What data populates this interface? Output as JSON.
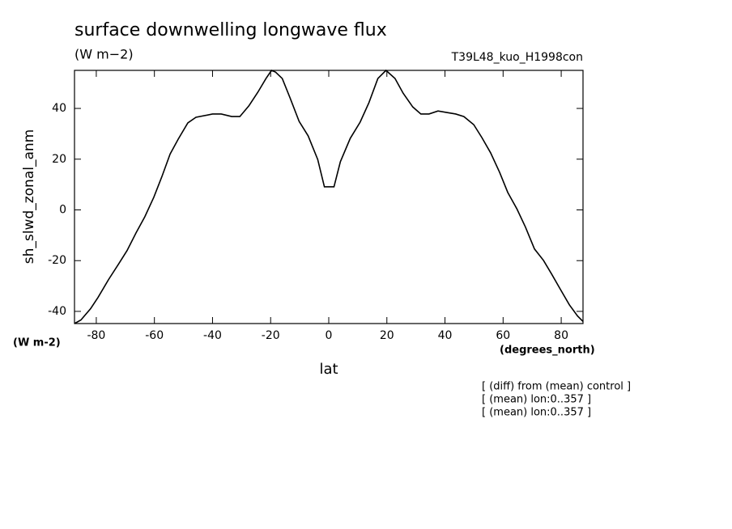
{
  "chart_data": {
    "type": "line",
    "title": "surface downwelling longwave flux",
    "units": "(W m−2)",
    "run_label": "T39L48_kuo_H1998con",
    "ylabel": "sh_slwd_zonal_anm",
    "y_units": "(W m-2)",
    "xlabel": "lat",
    "x_units": "(degrees_north)",
    "notes": [
      "[ (diff) from (mean) control ]",
      "[ (mean) lon:0..357 ]",
      "[ (mean) lon:0..357 ]"
    ],
    "x": [
      -87.5,
      -85.3,
      -82,
      -79.4,
      -75.8,
      -72.2,
      -69.4,
      -66.3,
      -63.3,
      -60.2,
      -57.4,
      -54.6,
      -51.8,
      -48.5,
      -45.7,
      -40,
      -37,
      -33.4,
      -30.6,
      -27.5,
      -24.4,
      -21.6,
      -19.7,
      -18.3,
      -16,
      -13.3,
      -10.2,
      -7.1,
      -3.8,
      -1.5,
      1.8,
      4,
      7.4,
      10.8,
      13.8,
      16.9,
      19.7,
      22.8,
      25.6,
      28.9,
      31.7,
      34.5,
      37.6,
      40.6,
      43.7,
      46.5,
      49.9,
      52.7,
      55.7,
      58.8,
      61.6,
      64.7,
      67.7,
      70.8,
      73.9,
      76.7,
      79.7,
      82.8,
      85.6,
      87.5
    ],
    "series": [
      {
        "name": "sh_slwd_zonal_anm",
        "color": "#000000",
        "values": [
          -44.8,
          -43.4,
          -39,
          -34.5,
          -27.5,
          -21.1,
          -16,
          -9,
          -2.7,
          5,
          13.2,
          22,
          27.9,
          34.3,
          36.5,
          37.8,
          37.8,
          36.8,
          36.8,
          41,
          46.4,
          51.8,
          55,
          54.3,
          51.8,
          44.1,
          34.9,
          29.2,
          19.9,
          9.1,
          9.1,
          19,
          28.2,
          34.6,
          42.2,
          51.8,
          55,
          51.8,
          46,
          40.6,
          37.8,
          37.8,
          39,
          38.4,
          37.8,
          36.8,
          33.6,
          28.5,
          22.5,
          14.8,
          6.9,
          0.5,
          -6.8,
          -15.4,
          -19.9,
          -25.3,
          -31.3,
          -37.4,
          -41.8,
          -44
        ]
      }
    ],
    "xlim": [
      -87.5,
      87.5
    ],
    "ylim": [
      -44.8,
      55
    ],
    "xticks": [
      -80,
      -60,
      -40,
      -20,
      0,
      20,
      40,
      60,
      80
    ],
    "yticks": [
      -40,
      -20,
      0,
      20,
      40
    ]
  }
}
